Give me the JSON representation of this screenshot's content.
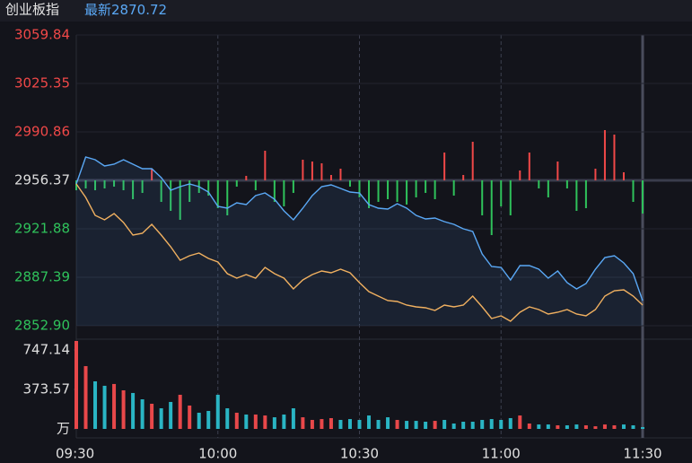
{
  "header": {
    "name": "创业板指",
    "latest_label": "最新",
    "latest": 2870.72
  },
  "chart_data": [
    {
      "type": "line",
      "ylim": [
        2852.9,
        3059.84
      ],
      "yticks": [
        3059.84,
        3025.35,
        2990.86,
        2956.37,
        2921.88,
        2887.39,
        {
          "value": 2852.9,
          "label": "2852.90"
        }
      ],
      "grid": true,
      "up_color": "#f04848",
      "down_color": "#2fc25b",
      "level_color": "#dddddd",
      "series": [
        {
          "color": "#5aa8f5",
          "values": [
            2953.82,
            2972.98,
            2971.06,
            2966.59,
            2967.87,
            2971.06,
            2967.87,
            2964.67,
            2964.67,
            2958.29,
            2949.34,
            2951.9,
            2953.82,
            2951.9,
            2948.07,
            2937.85,
            2936.57,
            2940.4,
            2939.13,
            2945.51,
            2947.43,
            2942.96,
            2934.65,
            2928.27,
            2936.57,
            2945.51,
            2951.9,
            2953.18,
            2950.62,
            2948.07,
            2947.43,
            2939.13,
            2936.57,
            2935.93,
            2939.76,
            2936.57,
            2931.46,
            2928.91,
            2929.55,
            2926.99,
            2925.07,
            2921.88,
            2919.96,
            2904.0,
            2895.06,
            2894.42,
            2885.47,
            2895.69,
            2895.69,
            2893.14,
            2886.75,
            2891.86,
            2883.56,
            2879.09,
            2882.92,
            2893.14,
            2901.44,
            2902.72,
            2897.61,
            2889.95,
            2870.72
          ]
        },
        {
          "color": "#f0b060",
          "values": [
            2953.82,
            2944.24,
            2931.46,
            2928.27,
            2932.74,
            2926.35,
            2917.41,
            2918.69,
            2925.07,
            2917.41,
            2909.11,
            2899.53,
            2902.72,
            2904.64,
            2900.8,
            2898.25,
            2889.95,
            2886.75,
            2889.31,
            2886.75,
            2894.42,
            2889.95,
            2886.75,
            2879.09,
            2885.47,
            2889.31,
            2891.86,
            2890.58,
            2893.14,
            2890.58,
            2883.56,
            2877.17,
            2873.98,
            2870.78,
            2870.15,
            2867.59,
            2866.31,
            2865.68,
            2863.76,
            2867.59,
            2866.31,
            2867.59,
            2873.98,
            2866.31,
            2858.01,
            2859.93,
            2856.09,
            2862.48,
            2866.31,
            2864.4,
            2861.2,
            2862.48,
            2864.4,
            2861.2,
            2859.93,
            2864.4,
            2873.98,
            2877.81,
            2878.45,
            2873.98,
            2867.59
          ]
        }
      ],
      "bars": {
        "values": [
          2949.34,
          2950.62,
          2949.34,
          2950.62,
          2951.9,
          2949.34,
          2942.96,
          2947.43,
          2964.67,
          2941.04,
          2934.65,
          2928.27,
          2941.04,
          2947.43,
          2945.51,
          2936.57,
          2931.46,
          2951.9,
          2959.56,
          2949.34,
          2977.45,
          2941.04,
          2937.85,
          2947.43,
          2971.06,
          2969.78,
          2968.51,
          2960.2,
          2964.67,
          2951.9,
          2944.24,
          2936.57,
          2941.04,
          2942.96,
          2941.04,
          2939.13,
          2944.24,
          2947.43,
          2942.96,
          2976.17,
          2945.51,
          2960.2,
          2983.83,
          2931.46,
          2917.41,
          2937.85,
          2931.46,
          2963.4,
          2976.17,
          2950.62,
          2944.24,
          2969.78,
          2950.62,
          2934.65,
          2936.57,
          2964.67,
          2992.14,
          2988.94,
          2962.12,
          2941.04,
          2932.74
        ]
      }
    },
    {
      "type": "bar",
      "ylim": [
        0,
        849
      ],
      "yticks": [
        747.14,
        373.57,
        {
          "value": 0,
          "label": "万"
        }
      ],
      "up_color": "#e8484a",
      "down_color": "#2ab5c4",
      "categories": [
        "09:30",
        null,
        null,
        null,
        null,
        null,
        null,
        null,
        null,
        null,
        null,
        null,
        null,
        null,
        null,
        "10:00",
        null,
        null,
        null,
        null,
        null,
        null,
        null,
        null,
        null,
        null,
        null,
        null,
        null,
        null,
        "10:30",
        null,
        null,
        null,
        null,
        null,
        null,
        null,
        null,
        null,
        null,
        null,
        null,
        null,
        null,
        "11:00",
        null,
        null,
        null,
        null,
        null,
        null,
        null,
        null,
        null,
        null,
        null,
        null,
        null,
        null,
        "11:30"
      ],
      "values": [
        832,
        594,
        450,
        408,
        425,
        365,
        340,
        280,
        238,
        195,
        255,
        323,
        221,
        153,
        170,
        323,
        195,
        153,
        136,
        136,
        127,
        110,
        136,
        195,
        110,
        85,
        93,
        102,
        85,
        93,
        85,
        127,
        85,
        110,
        85,
        76,
        76,
        68,
        76,
        85,
        51,
        68,
        68,
        85,
        93,
        85,
        102,
        127,
        51,
        42,
        42,
        34,
        34,
        42,
        34,
        25,
        42,
        34,
        42,
        34,
        17
      ]
    }
  ]
}
